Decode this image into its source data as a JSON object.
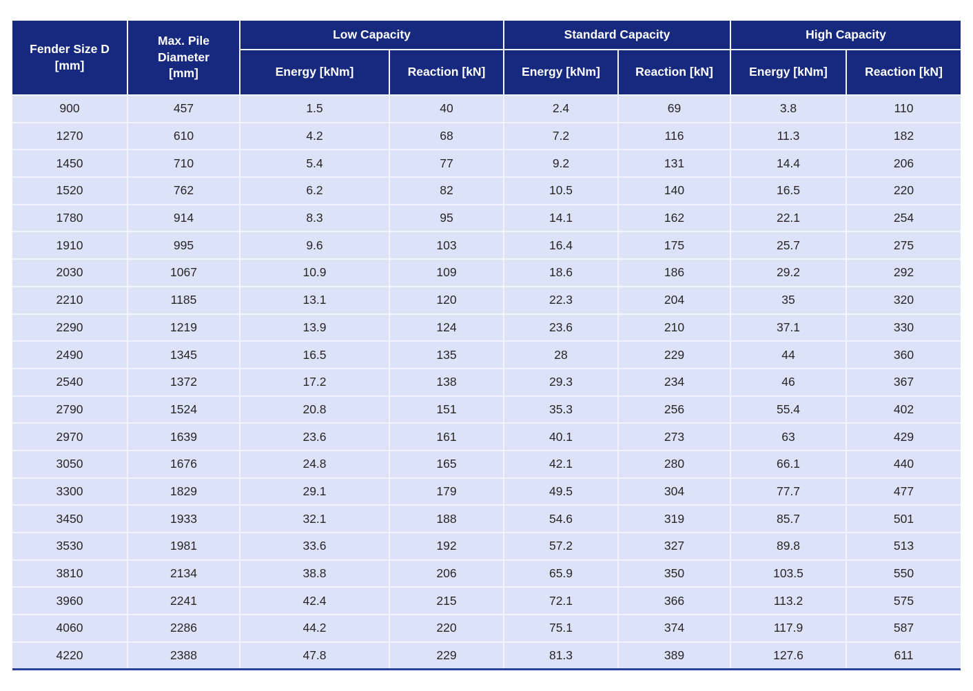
{
  "table": {
    "header": {
      "fender_size": {
        "l1": "Fender Size D",
        "l2": "[mm]"
      },
      "max_pile": {
        "l1": "Max. Pile",
        "l2": "Diameter",
        "l3": "[mm]"
      },
      "groups": [
        "Low Capacity",
        "Standard Capacity",
        "High Capacity"
      ],
      "energy_label": "Energy [kNm]",
      "reaction_label": "Reaction [kN]"
    },
    "rows": [
      [
        "900",
        "457",
        "1.5",
        "40",
        "2.4",
        "69",
        "3.8",
        "110"
      ],
      [
        "1270",
        "610",
        "4.2",
        "68",
        "7.2",
        "116",
        "11.3",
        "182"
      ],
      [
        "1450",
        "710",
        "5.4",
        "77",
        "9.2",
        "131",
        "14.4",
        "206"
      ],
      [
        "1520",
        "762",
        "6.2",
        "82",
        "10.5",
        "140",
        "16.5",
        "220"
      ],
      [
        "1780",
        "914",
        "8.3",
        "95",
        "14.1",
        "162",
        "22.1",
        "254"
      ],
      [
        "1910",
        "995",
        "9.6",
        "103",
        "16.4",
        "175",
        "25.7",
        "275"
      ],
      [
        "2030",
        "1067",
        "10.9",
        "109",
        "18.6",
        "186",
        "29.2",
        "292"
      ],
      [
        "2210",
        "1185",
        "13.1",
        "120",
        "22.3",
        "204",
        "35",
        "320"
      ],
      [
        "2290",
        "1219",
        "13.9",
        "124",
        "23.6",
        "210",
        "37.1",
        "330"
      ],
      [
        "2490",
        "1345",
        "16.5",
        "135",
        "28",
        "229",
        "44",
        "360"
      ],
      [
        "2540",
        "1372",
        "17.2",
        "138",
        "29.3",
        "234",
        "46",
        "367"
      ],
      [
        "2790",
        "1524",
        "20.8",
        "151",
        "35.3",
        "256",
        "55.4",
        "402"
      ],
      [
        "2970",
        "1639",
        "23.6",
        "161",
        "40.1",
        "273",
        "63",
        "429"
      ],
      [
        "3050",
        "1676",
        "24.8",
        "165",
        "42.1",
        "280",
        "66.1",
        "440"
      ],
      [
        "3300",
        "1829",
        "29.1",
        "179",
        "49.5",
        "304",
        "77.7",
        "477"
      ],
      [
        "3450",
        "1933",
        "32.1",
        "188",
        "54.6",
        "319",
        "85.7",
        "501"
      ],
      [
        "3530",
        "1981",
        "33.6",
        "192",
        "57.2",
        "327",
        "89.8",
        "513"
      ],
      [
        "3810",
        "2134",
        "38.8",
        "206",
        "65.9",
        "350",
        "103.5",
        "550"
      ],
      [
        "3960",
        "2241",
        "42.4",
        "215",
        "72.1",
        "366",
        "113.2",
        "575"
      ],
      [
        "4060",
        "2286",
        "44.2",
        "220",
        "75.1",
        "374",
        "117.9",
        "587"
      ],
      [
        "4220",
        "2388",
        "47.8",
        "229",
        "81.3",
        "389",
        "127.6",
        "611"
      ]
    ]
  },
  "colors": {
    "header_background": "#16297e",
    "header_text": "#ffffff",
    "cell_background": "#dce3f8",
    "separator": "#f1f4fd",
    "bottom_rule": "#2a3f96",
    "body_text": "#262626"
  }
}
